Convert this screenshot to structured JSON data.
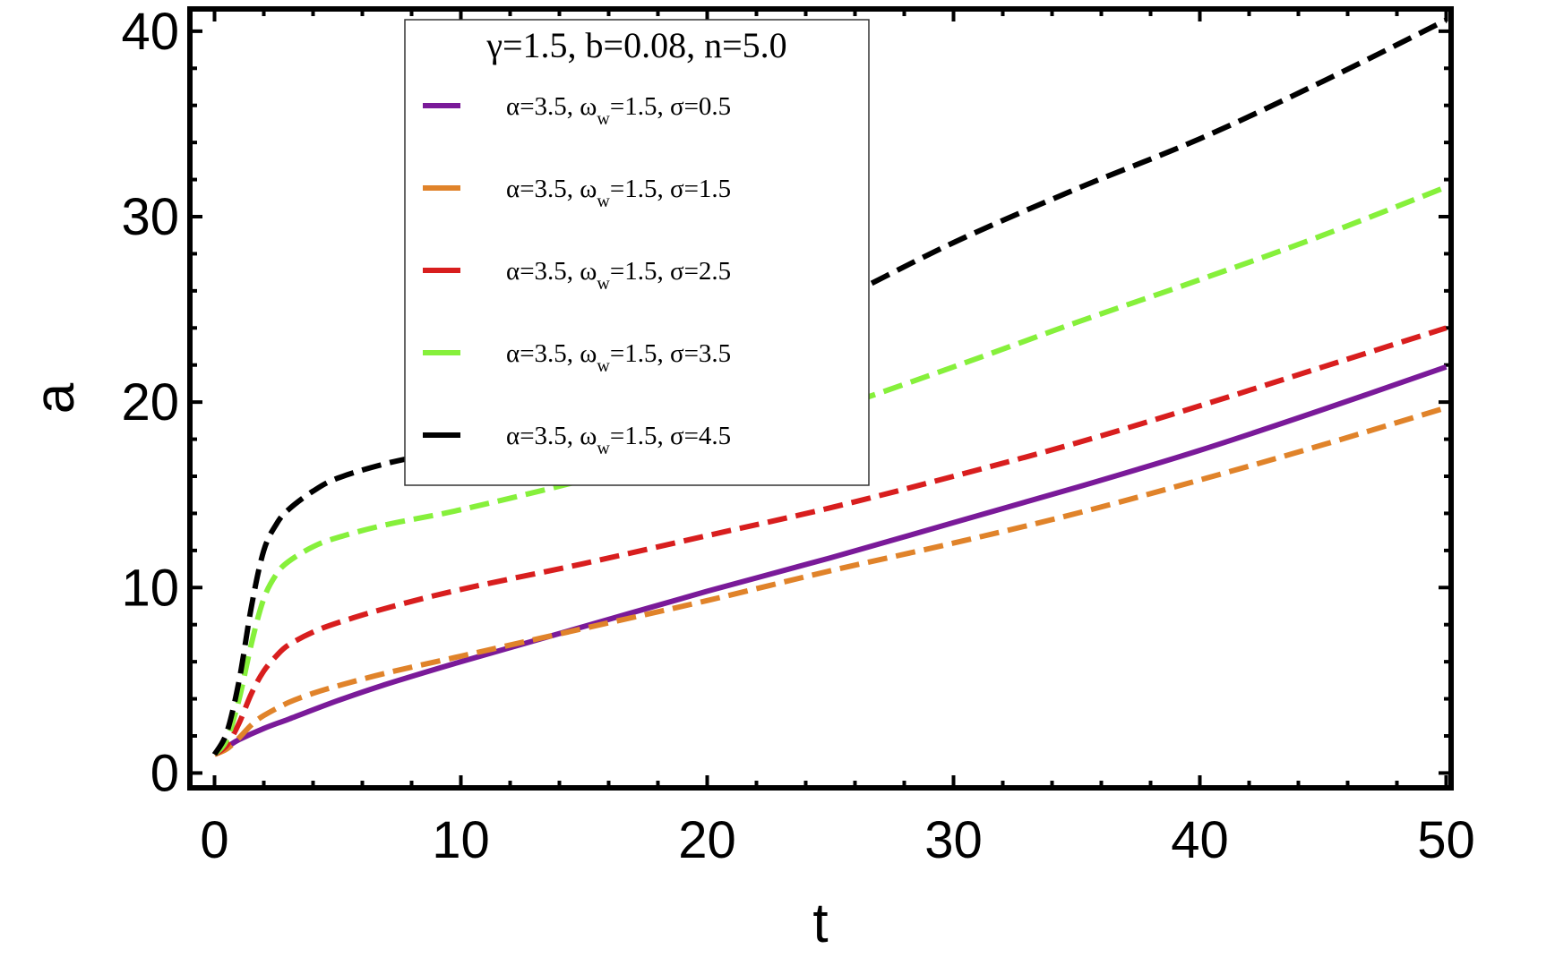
{
  "chart_data": {
    "type": "line",
    "title": "",
    "xlabel": "t",
    "ylabel": "a",
    "xlim": [
      -1,
      50.2
    ],
    "ylim": [
      -0.8,
      41.2
    ],
    "xticks": [
      0,
      10,
      20,
      30,
      40,
      50
    ],
    "yticks": [
      0,
      10,
      20,
      30,
      40
    ],
    "grid": false,
    "legend": {
      "placement": "top-center",
      "title": "γ=1.5, b=0.08, n=5.0"
    },
    "series": [
      {
        "name": "α=3.5, ω_w=1.5, σ=0.5",
        "label_parts": {
          "pre": "α=3.5, ω",
          "sub": "w",
          "post": "=1.5, σ=0.5"
        },
        "color": "#7a1a99",
        "dash": "solid",
        "x": [
          0,
          0.5,
          1,
          2,
          3,
          5,
          7,
          10,
          15,
          20,
          25,
          30,
          35,
          40,
          45,
          50
        ],
        "y": [
          1.0,
          1.4,
          1.8,
          2.4,
          2.9,
          3.9,
          4.8,
          6.0,
          7.9,
          9.8,
          11.6,
          13.5,
          15.4,
          17.4,
          19.6,
          21.9
        ]
      },
      {
        "name": "α=3.5, ω_w=1.5, σ=1.5",
        "label_parts": {
          "pre": "α=3.5, ω",
          "sub": "w",
          "post": "=1.5, σ=1.5"
        },
        "color": "#e0832a",
        "dash": "dashed",
        "x": [
          0,
          0.5,
          1,
          1.5,
          2,
          3,
          4,
          5,
          7,
          10,
          15,
          20,
          25,
          30,
          35,
          40,
          45,
          50
        ],
        "y": [
          1.0,
          1.3,
          1.9,
          2.6,
          3.1,
          3.8,
          4.3,
          4.7,
          5.4,
          6.3,
          7.8,
          9.3,
          10.9,
          12.4,
          14.0,
          15.8,
          17.7,
          19.7
        ]
      },
      {
        "name": "α=3.5, ω_w=1.5, σ=2.5",
        "label_parts": {
          "pre": "α=3.5, ω",
          "sub": "w",
          "post": "=1.5, σ=2.5"
        },
        "color": "#d81e1e",
        "dash": "dashed",
        "x": [
          0,
          0.5,
          1,
          1.5,
          2,
          2.5,
          3,
          4,
          5,
          7,
          10,
          15,
          20,
          25,
          30,
          35,
          40,
          45,
          50
        ],
        "y": [
          1.0,
          1.5,
          2.7,
          4.3,
          5.5,
          6.3,
          6.9,
          7.6,
          8.1,
          8.9,
          9.9,
          11.3,
          12.8,
          14.3,
          16.0,
          17.8,
          19.8,
          21.9,
          24.0
        ]
      },
      {
        "name": "α=3.5, ω_w=1.5, σ=3.5",
        "label_parts": {
          "pre": "α=3.5, ω",
          "sub": "w",
          "post": "=1.5, σ=3.5"
        },
        "color": "#86f03b",
        "dash": "dashed",
        "x": [
          0,
          0.5,
          1,
          1.5,
          2,
          2.5,
          3,
          4,
          5,
          7,
          10,
          15,
          20,
          25,
          30,
          35,
          40,
          45,
          50
        ],
        "y": [
          1.0,
          1.8,
          4.0,
          7.0,
          9.4,
          10.7,
          11.4,
          12.2,
          12.7,
          13.4,
          14.2,
          15.8,
          17.6,
          19.6,
          21.9,
          24.3,
          26.6,
          29.0,
          31.6
        ]
      },
      {
        "name": "α=3.5, ω_w=1.5, σ=4.5",
        "label_parts": {
          "pre": "α=3.5, ω",
          "sub": "w",
          "post": "=1.5, σ=4.5"
        },
        "color": "#000000",
        "dash": "dashed",
        "x": [
          0,
          0.5,
          1,
          1.5,
          2,
          2.5,
          3,
          4,
          5,
          7,
          10,
          15,
          20,
          25,
          30,
          35,
          40,
          45,
          50
        ],
        "y": [
          1.0,
          2.2,
          5.0,
          9.0,
          12.0,
          13.4,
          14.2,
          15.2,
          15.9,
          16.7,
          17.6,
          19.6,
          22.2,
          25.3,
          28.6,
          31.5,
          34.2,
          37.3,
          40.6
        ]
      }
    ]
  }
}
